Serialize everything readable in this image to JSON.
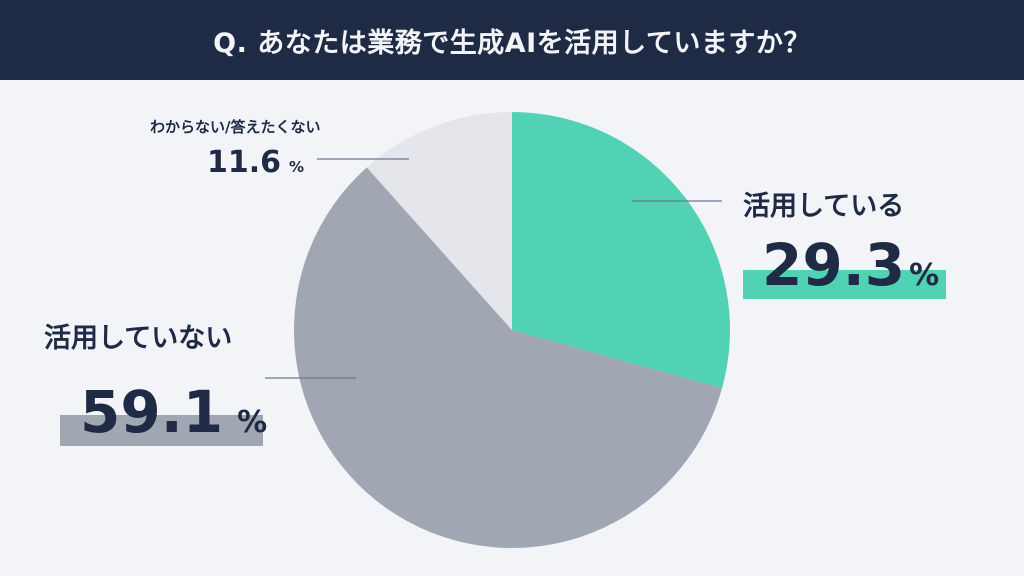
{
  "header": {
    "title": "Q. あなたは業務で生成AIを活用していますか？"
  },
  "slices": [
    {
      "label": "活用している",
      "value": "29.3",
      "unit": "%",
      "color": "#52d2b4"
    },
    {
      "label": "活用していない",
      "value": "59.1",
      "unit": "%",
      "color": "#a1a7b2"
    },
    {
      "label": "わからない/答えたくない",
      "value": "11.6",
      "unit": "%",
      "color": "#e4e6ec"
    }
  ],
  "colors": {
    "header_bg": "#1f2a44",
    "background": "#f2f4f8",
    "text": "#1f2a44",
    "leader_line": "#6b7791"
  },
  "chart_data": {
    "type": "pie",
    "title": "Q. あなたは業務で生成AIを活用していますか？",
    "categories": [
      "活用している",
      "活用していない",
      "わからない/答えたくない"
    ],
    "values": [
      29.3,
      59.1,
      11.6
    ],
    "unit": "%",
    "colors": [
      "#52d2b4",
      "#a1a7b2",
      "#e4e6ec"
    ],
    "start_angle": "12 o'clock, clockwise",
    "legend": "none (direct labels with leader lines)"
  }
}
